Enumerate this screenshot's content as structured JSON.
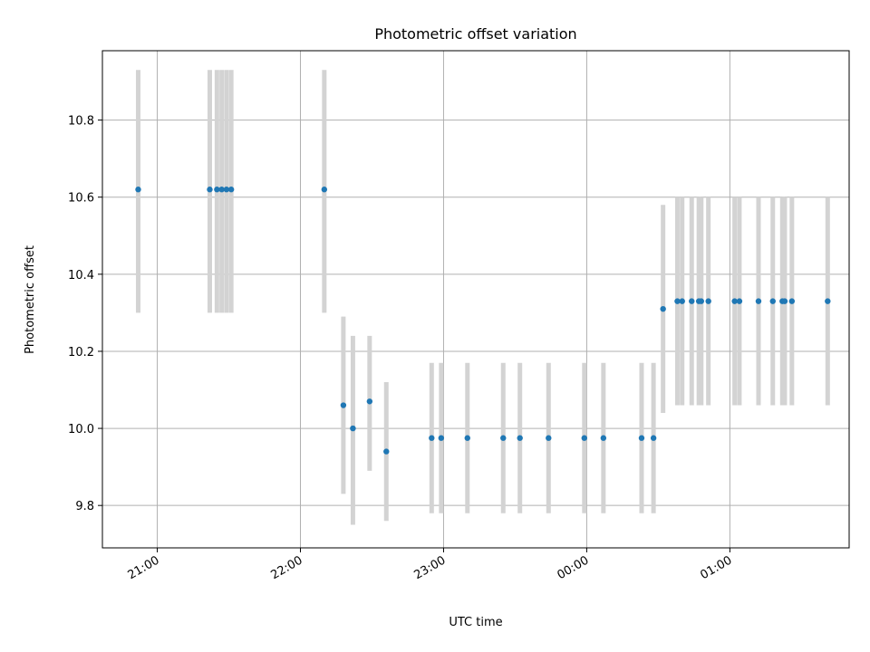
{
  "chart_data": {
    "type": "scatter",
    "title": "Photometric offset variation",
    "xlabel": "UTC time",
    "ylabel": "Photometric offset",
    "x_axis": "time",
    "x_ticks": [
      "21:00",
      "22:00",
      "23:00",
      "00:00",
      "01:00"
    ],
    "y_ticks": [
      "9.8",
      "10.0",
      "10.2",
      "10.4",
      "10.6",
      "10.8"
    ],
    "xlim": [
      "20:37",
      "01:50"
    ],
    "ylim": [
      9.69,
      10.98
    ],
    "grid": true,
    "errorbar_color": "#d3d3d3",
    "marker_color": "#1f77b4",
    "points": [
      {
        "time": "20:52",
        "y": 10.62,
        "ylow": 10.3,
        "yhigh": 10.93
      },
      {
        "time": "21:22",
        "y": 10.62,
        "ylow": 10.3,
        "yhigh": 10.93
      },
      {
        "time": "21:25",
        "y": 10.62,
        "ylow": 10.3,
        "yhigh": 10.93
      },
      {
        "time": "21:27",
        "y": 10.62,
        "ylow": 10.3,
        "yhigh": 10.93
      },
      {
        "time": "21:29",
        "y": 10.62,
        "ylow": 10.3,
        "yhigh": 10.93
      },
      {
        "time": "21:31",
        "y": 10.62,
        "ylow": 10.3,
        "yhigh": 10.93
      },
      {
        "time": "22:10",
        "y": 10.62,
        "ylow": 10.3,
        "yhigh": 10.93
      },
      {
        "time": "22:18",
        "y": 10.06,
        "ylow": 9.83,
        "yhigh": 10.29
      },
      {
        "time": "22:22",
        "y": 10.0,
        "ylow": 9.75,
        "yhigh": 10.24
      },
      {
        "time": "22:29",
        "y": 10.07,
        "ylow": 9.89,
        "yhigh": 10.24
      },
      {
        "time": "22:36",
        "y": 9.94,
        "ylow": 9.76,
        "yhigh": 10.12
      },
      {
        "time": "22:55",
        "y": 9.975,
        "ylow": 9.78,
        "yhigh": 10.17
      },
      {
        "time": "22:59",
        "y": 9.975,
        "ylow": 9.78,
        "yhigh": 10.17
      },
      {
        "time": "23:10",
        "y": 9.975,
        "ylow": 9.78,
        "yhigh": 10.17
      },
      {
        "time": "23:25",
        "y": 9.975,
        "ylow": 9.78,
        "yhigh": 10.17
      },
      {
        "time": "23:32",
        "y": 9.975,
        "ylow": 9.78,
        "yhigh": 10.17
      },
      {
        "time": "23:44",
        "y": 9.975,
        "ylow": 9.78,
        "yhigh": 10.17
      },
      {
        "time": "23:59",
        "y": 9.975,
        "ylow": 9.78,
        "yhigh": 10.17
      },
      {
        "time": "00:07",
        "y": 9.975,
        "ylow": 9.78,
        "yhigh": 10.17
      },
      {
        "time": "00:23",
        "y": 9.975,
        "ylow": 9.78,
        "yhigh": 10.17
      },
      {
        "time": "00:28",
        "y": 9.975,
        "ylow": 9.78,
        "yhigh": 10.17
      },
      {
        "time": "00:32",
        "y": 10.31,
        "ylow": 10.04,
        "yhigh": 10.58
      },
      {
        "time": "00:38",
        "y": 10.33,
        "ylow": 10.06,
        "yhigh": 10.6
      },
      {
        "time": "00:40",
        "y": 10.33,
        "ylow": 10.06,
        "yhigh": 10.6
      },
      {
        "time": "00:44",
        "y": 10.33,
        "ylow": 10.06,
        "yhigh": 10.6
      },
      {
        "time": "00:47",
        "y": 10.33,
        "ylow": 10.06,
        "yhigh": 10.6
      },
      {
        "time": "00:48",
        "y": 10.33,
        "ylow": 10.06,
        "yhigh": 10.6
      },
      {
        "time": "00:51",
        "y": 10.33,
        "ylow": 10.06,
        "yhigh": 10.6
      },
      {
        "time": "01:02",
        "y": 10.33,
        "ylow": 10.06,
        "yhigh": 10.6
      },
      {
        "time": "01:04",
        "y": 10.33,
        "ylow": 10.06,
        "yhigh": 10.6
      },
      {
        "time": "01:12",
        "y": 10.33,
        "ylow": 10.06,
        "yhigh": 10.6
      },
      {
        "time": "01:18",
        "y": 10.33,
        "ylow": 10.06,
        "yhigh": 10.6
      },
      {
        "time": "01:22",
        "y": 10.33,
        "ylow": 10.06,
        "yhigh": 10.6
      },
      {
        "time": "01:23",
        "y": 10.33,
        "ylow": 10.06,
        "yhigh": 10.6
      },
      {
        "time": "01:26",
        "y": 10.33,
        "ylow": 10.06,
        "yhigh": 10.6
      },
      {
        "time": "01:41",
        "y": 10.33,
        "ylow": 10.06,
        "yhigh": 10.6
      }
    ]
  }
}
